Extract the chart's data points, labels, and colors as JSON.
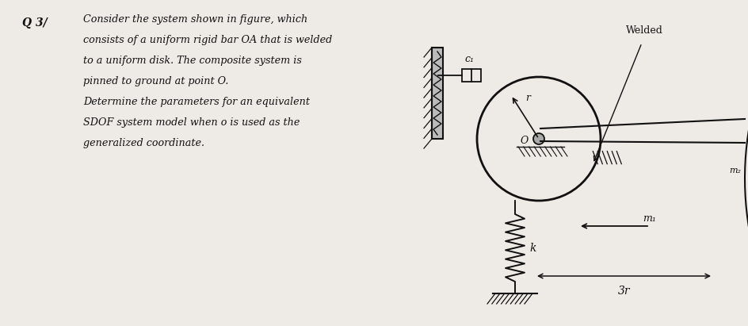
{
  "bg_color": "#eeebe6",
  "text_color": "#111111",
  "question_label": "Q 3/",
  "paragraph_lines": [
    "Consider the system shown in figure, which",
    "consists of a uniform rigid bar OA that is welded",
    "to a uniform disk. The composite system is",
    "pinned to ground at point O.",
    "Determine the parameters for an equivalent",
    "SDOF system model when o is used as the",
    "generalized coordinate."
  ],
  "label_c1": "c₁",
  "label_welded": "Welded",
  "label_r": "r",
  "label_O": "O",
  "label_k": "k",
  "label_m1": "m₁",
  "label_m2": "m₂",
  "label_3r": "3r",
  "line_color": "#111111",
  "wall_color": "#888888"
}
